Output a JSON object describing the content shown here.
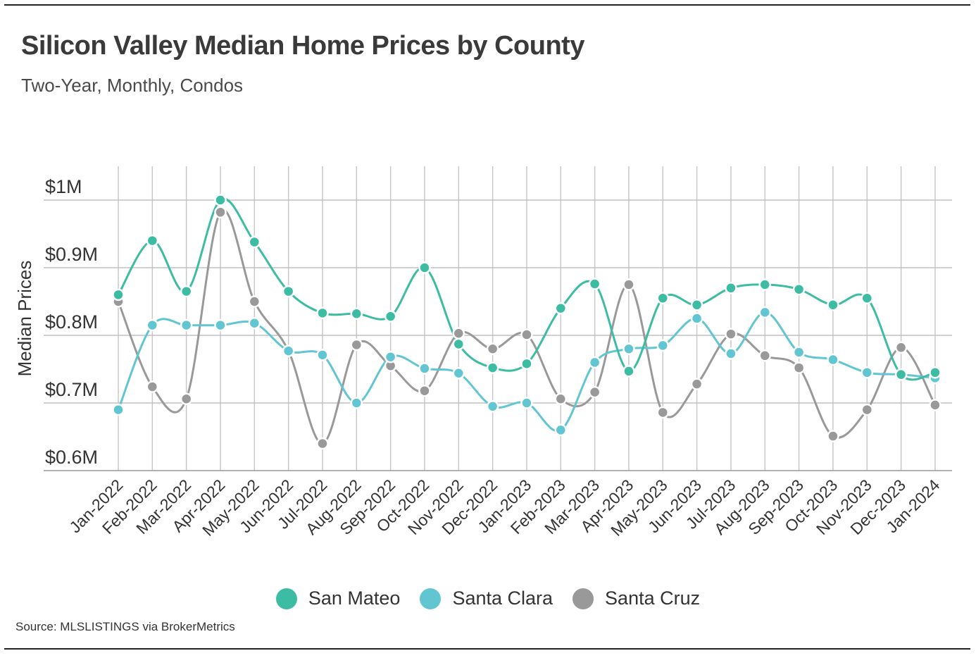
{
  "header": {
    "title": "Silicon Valley Median Home Prices by County",
    "subtitle": "Two-Year, Monthly, Condos"
  },
  "source": "Source:  MLSLISTINGS via BrokerMetrics",
  "chart_data": {
    "type": "line",
    "title": "Silicon Valley Median Home Prices by County",
    "subtitle": "Two-Year, Monthly, Condos",
    "xlabel": "",
    "ylabel": "Median Prices",
    "ylim": [
      600000,
      1000000
    ],
    "yticks": [
      {
        "value": 600000,
        "label": "$0.6M"
      },
      {
        "value": 700000,
        "label": "$0.7M"
      },
      {
        "value": 800000,
        "label": "$0.8M"
      },
      {
        "value": 900000,
        "label": "$0.9M"
      },
      {
        "value": 1000000,
        "label": "$1M"
      }
    ],
    "grid": true,
    "legend_position": "bottom",
    "categories": [
      "Jan-2022",
      "Feb-2022",
      "Mar-2022",
      "Apr-2022",
      "May-2022",
      "Jun-2022",
      "Jul-2022",
      "Aug-2022",
      "Sep-2022",
      "Oct-2022",
      "Nov-2022",
      "Dec-2022",
      "Jan-2023",
      "Feb-2023",
      "Mar-2023",
      "Apr-2023",
      "May-2023",
      "Jun-2023",
      "Jul-2023",
      "Aug-2023",
      "Sep-2023",
      "Oct-2023",
      "Nov-2023",
      "Dec-2023",
      "Jan-2024"
    ],
    "series": [
      {
        "name": "San Mateo",
        "color": "#3dbca4",
        "values": [
          860000,
          940000,
          865000,
          1000000,
          938000,
          865000,
          833000,
          832000,
          828000,
          900000,
          787000,
          752000,
          758000,
          840000,
          876000,
          747000,
          855000,
          845000,
          870000,
          875000,
          868000,
          845000,
          855000,
          742000,
          745000
        ]
      },
      {
        "name": "Santa Clara",
        "color": "#62c6d2",
        "values": [
          690000,
          815000,
          815000,
          815000,
          818000,
          777000,
          771000,
          700000,
          768000,
          751000,
          744000,
          695000,
          700000,
          660000,
          760000,
          780000,
          785000,
          825000,
          773000,
          834000,
          775000,
          764000,
          745000,
          742000,
          737000
        ]
      },
      {
        "name": "Santa Cruz",
        "color": "#999999",
        "values": [
          850000,
          724000,
          706000,
          982000,
          850000,
          777000,
          640000,
          786000,
          755000,
          718000,
          803000,
          780000,
          801000,
          706000,
          716000,
          875000,
          686000,
          728000,
          802000,
          770000,
          752000,
          651000,
          690000,
          782000,
          697000
        ]
      }
    ]
  }
}
